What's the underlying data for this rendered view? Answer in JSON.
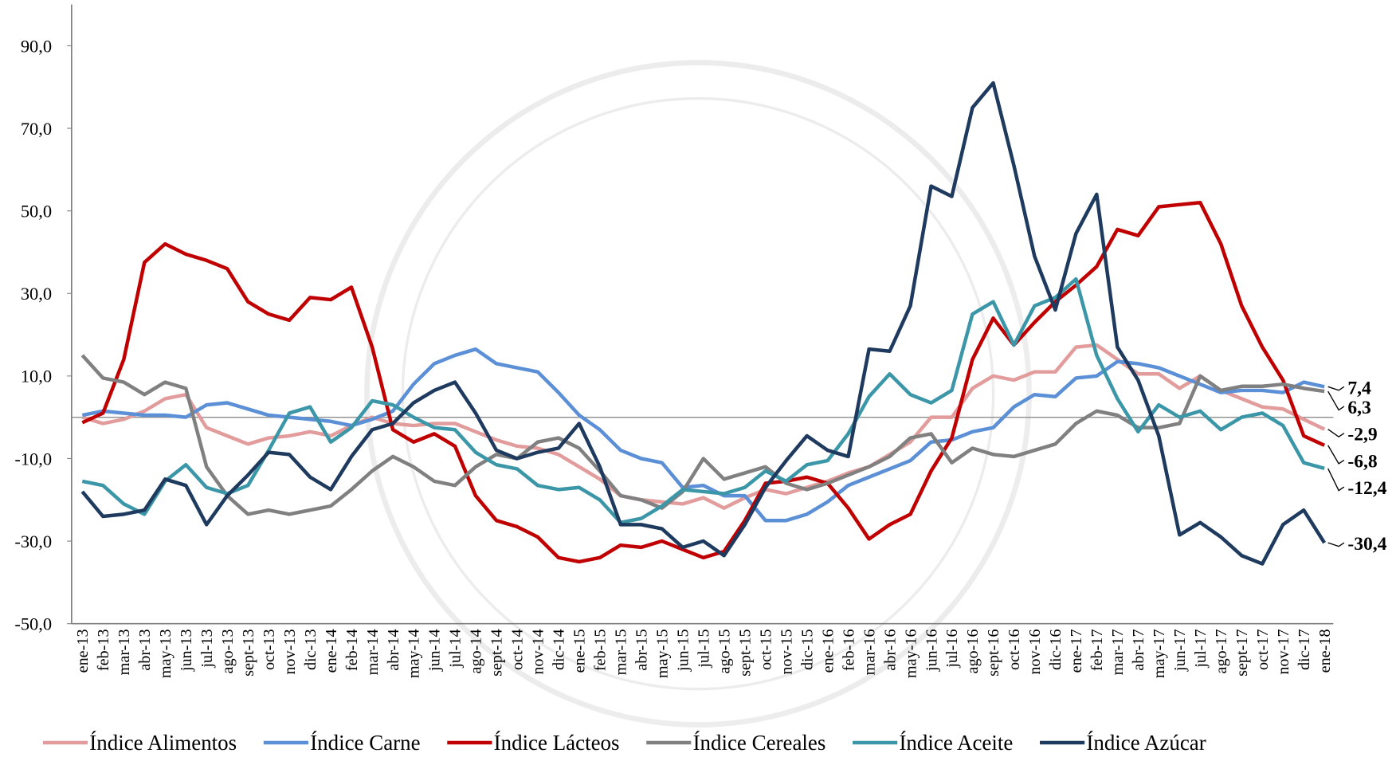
{
  "chart_data": {
    "type": "line",
    "categories": [
      "ene-13",
      "feb-13",
      "mar-13",
      "abr-13",
      "may-13",
      "jun-13",
      "jul-13",
      "ago-13",
      "sept-13",
      "oct-13",
      "nov-13",
      "dic-13",
      "ene-14",
      "feb-14",
      "mar-14",
      "abr-14",
      "may-14",
      "jun-14",
      "jul-14",
      "ago-14",
      "sept-14",
      "oct-14",
      "nov-14",
      "dic-14",
      "ene-15",
      "feb-15",
      "mar-15",
      "abr-15",
      "may-15",
      "jun-15",
      "jul-15",
      "ago-15",
      "sept-15",
      "oct-15",
      "nov-15",
      "dic-15",
      "ene-16",
      "feb-16",
      "mar-16",
      "abr-16",
      "may-16",
      "jun-16",
      "jul-16",
      "ago-16",
      "sept-16",
      "oct-16",
      "nov-16",
      "dic-16",
      "ene-17",
      "feb-17",
      "mar-17",
      "abr-17",
      "may-17",
      "jun-17",
      "jul-17",
      "ago-17",
      "sept-17",
      "oct-17",
      "nov-17",
      "dic-17",
      "ene-18"
    ],
    "ylim": [
      -50,
      100
    ],
    "yticks": [
      {
        "value": -50,
        "label": "-50,0"
      },
      {
        "value": -30,
        "label": "-30,0"
      },
      {
        "value": -10,
        "label": "-10,0"
      },
      {
        "value": 10,
        "label": "10,0"
      },
      {
        "value": 30,
        "label": "30,0"
      },
      {
        "value": 50,
        "label": "50,0"
      },
      {
        "value": 70,
        "label": "70,0"
      },
      {
        "value": 90,
        "label": "90,0"
      }
    ],
    "legend": "bottom",
    "series": [
      {
        "name": "Índice Alimentos",
        "color": "#e39c9c",
        "values": [
          0,
          -1.5,
          -0.5,
          1.5,
          4.5,
          5.5,
          -2.5,
          -4.5,
          -6.5,
          -5,
          -4.5,
          -3.5,
          -4.5,
          -2,
          0,
          -1.5,
          -2,
          -1.5,
          -1.5,
          -3.5,
          -5.5,
          -7,
          -7.5,
          -9,
          -12,
          -15,
          -19,
          -20,
          -20.5,
          -21,
          -19.5,
          -22,
          -19.5,
          -17.5,
          -18.5,
          -17,
          -15.5,
          -13.5,
          -12,
          -9,
          -6,
          0,
          0,
          7,
          10,
          9,
          11,
          11,
          17,
          17.5,
          14,
          10.5,
          10.5,
          7,
          10,
          6.5,
          4.5,
          2.5,
          2,
          -0.5,
          -2.9
        ],
        "value_labels": [
          null,
          null,
          null,
          null,
          null,
          null,
          null,
          null,
          null,
          null,
          null,
          null,
          null,
          null,
          null,
          null,
          null,
          null,
          null,
          null,
          null,
          null,
          null,
          null,
          null,
          null,
          null,
          null,
          null,
          null,
          null,
          null,
          null,
          null,
          null,
          null,
          null,
          null,
          null,
          null,
          null,
          null,
          null,
          null,
          null,
          null,
          null,
          null,
          null,
          null,
          null,
          null,
          null,
          null,
          null,
          null,
          null,
          null,
          null,
          null,
          "-2,9"
        ]
      },
      {
        "name": "Índice Carne",
        "color": "#5b8fd6",
        "values": [
          0.5,
          1.5,
          1,
          0.5,
          0.5,
          0,
          3,
          3.5,
          2,
          0.5,
          0,
          -0.5,
          -1,
          -2,
          -0.5,
          1.5,
          8,
          13,
          15,
          16.5,
          13,
          12,
          11,
          6,
          0.5,
          -3,
          -8,
          -10,
          -11,
          -17,
          -16.5,
          -19,
          -19,
          -25,
          -25,
          -23.5,
          -20.5,
          -16.5,
          -14.5,
          -12.5,
          -10.5,
          -6,
          -5.5,
          -3.5,
          -2.5,
          2.5,
          5.5,
          5,
          9.5,
          10,
          13.5,
          13,
          12,
          10,
          8,
          6,
          6.5,
          6.5,
          6,
          8.5,
          7.4
        ],
        "value_labels": [
          null,
          null,
          null,
          null,
          null,
          null,
          null,
          null,
          null,
          null,
          null,
          null,
          null,
          null,
          null,
          null,
          null,
          null,
          null,
          null,
          null,
          null,
          null,
          null,
          null,
          null,
          null,
          null,
          null,
          null,
          null,
          null,
          null,
          null,
          null,
          null,
          null,
          null,
          null,
          null,
          null,
          null,
          null,
          null,
          null,
          null,
          null,
          null,
          null,
          null,
          null,
          null,
          null,
          null,
          null,
          null,
          null,
          null,
          null,
          null,
          "7,4"
        ]
      },
      {
        "name": "Índice Lácteos",
        "color": "#c00000",
        "values": [
          -1.3,
          1,
          14,
          37.5,
          42,
          39.5,
          38,
          36,
          28,
          25,
          23.5,
          29,
          28.5,
          31.5,
          17,
          -3,
          -6,
          -4,
          -7,
          -19,
          -25,
          -26.5,
          -29,
          -34,
          -35,
          -34,
          -31,
          -31.5,
          -30,
          -32,
          -34,
          -32.5,
          -25,
          -16,
          -15.5,
          -14.5,
          -16,
          -22,
          -29.5,
          -26,
          -23.5,
          -13,
          -5,
          14,
          24,
          17.5,
          23,
          28,
          32,
          36.5,
          45.5,
          44,
          51,
          51.5,
          52,
          42,
          27,
          17,
          9,
          -4.5,
          -6.8
        ],
        "value_labels": [
          null,
          null,
          null,
          null,
          null,
          null,
          null,
          null,
          null,
          null,
          null,
          null,
          null,
          null,
          null,
          null,
          null,
          null,
          null,
          null,
          null,
          null,
          null,
          null,
          null,
          null,
          null,
          null,
          null,
          null,
          null,
          null,
          null,
          null,
          null,
          null,
          null,
          null,
          null,
          null,
          null,
          null,
          null,
          null,
          null,
          null,
          null,
          null,
          null,
          null,
          null,
          null,
          null,
          null,
          null,
          null,
          null,
          null,
          null,
          null,
          "-6,8"
        ]
      },
      {
        "name": "Índice Cereales",
        "color": "#808080",
        "values": [
          15,
          9.5,
          8.5,
          5.5,
          8.5,
          7,
          -12,
          -19,
          -23.5,
          -22.5,
          -23.5,
          -22.5,
          -21.5,
          -17.5,
          -13,
          -9.5,
          -12,
          -15.5,
          -16.5,
          -12,
          -9,
          -10,
          -6,
          -5,
          -7.5,
          -13,
          -19,
          -20,
          -22,
          -18,
          -10,
          -15,
          -13.5,
          -12,
          -16,
          -17.5,
          -16,
          -14,
          -12,
          -9.5,
          -5,
          -4,
          -11,
          -7.5,
          -9,
          -9.5,
          -8,
          -6.5,
          -1.5,
          1.5,
          0.5,
          -2.5,
          -2.5,
          -1.5,
          10,
          6.5,
          7.5,
          7.5,
          8,
          7,
          6.3
        ],
        "value_labels": [
          null,
          null,
          null,
          null,
          null,
          null,
          null,
          null,
          null,
          null,
          null,
          null,
          null,
          null,
          null,
          null,
          null,
          null,
          null,
          null,
          null,
          null,
          null,
          null,
          null,
          null,
          null,
          null,
          null,
          null,
          null,
          null,
          null,
          null,
          null,
          null,
          null,
          null,
          null,
          null,
          null,
          null,
          null,
          null,
          null,
          null,
          null,
          null,
          null,
          null,
          null,
          null,
          null,
          null,
          null,
          null,
          null,
          null,
          null,
          null,
          "6,3"
        ]
      },
      {
        "name": "Índice Aceite",
        "color": "#3b97a8",
        "values": [
          -15.5,
          -16.5,
          -21,
          -23.5,
          -15.5,
          -11.5,
          -17,
          -18.5,
          -16.5,
          -8,
          1,
          2.5,
          -6,
          -2.5,
          4,
          3,
          0,
          -2.5,
          -3,
          -8.5,
          -11.5,
          -12.5,
          -16.5,
          -17.5,
          -17,
          -20,
          -25.5,
          -24.5,
          -21.5,
          -17.5,
          -18,
          -18.5,
          -17,
          -13,
          -15.5,
          -11.5,
          -10.5,
          -4,
          5,
          10.5,
          5.5,
          3.5,
          6.5,
          25,
          28,
          17.5,
          27,
          29,
          33.5,
          15,
          4.5,
          -3.5,
          3,
          0,
          1.5,
          -3,
          0,
          1,
          -2,
          -11,
          -12.4
        ],
        "value_labels": [
          null,
          null,
          null,
          null,
          null,
          null,
          null,
          null,
          null,
          null,
          null,
          null,
          null,
          null,
          null,
          null,
          null,
          null,
          null,
          null,
          null,
          null,
          null,
          null,
          null,
          null,
          null,
          null,
          null,
          null,
          null,
          null,
          null,
          null,
          null,
          null,
          null,
          null,
          null,
          null,
          null,
          null,
          null,
          null,
          null,
          null,
          null,
          null,
          null,
          null,
          null,
          null,
          null,
          null,
          null,
          null,
          null,
          null,
          null,
          null,
          "-12,4"
        ]
      },
      {
        "name": "Índice Azúcar",
        "color": "#1f3a5f",
        "values": [
          -18,
          -24,
          -23.5,
          -22.5,
          -15,
          -16.5,
          -26,
          -19,
          -14,
          -8.5,
          -9,
          -14.5,
          -17.5,
          -9.5,
          -3,
          -1.5,
          3.5,
          6.5,
          8.5,
          1,
          -8,
          -10,
          -8.5,
          -7.5,
          -1.5,
          -12,
          -26,
          -26,
          -27,
          -31.5,
          -30,
          -33.5,
          -26,
          -17,
          -10.5,
          -4.5,
          -8,
          -9.5,
          16.5,
          16,
          27,
          56,
          53.5,
          75,
          81,
          61,
          39,
          26,
          44.5,
          54,
          17,
          9,
          -4.5,
          -28.5,
          -25.5,
          -29,
          -33.5,
          -35.5,
          -26,
          -22.5,
          -30.4
        ],
        "value_labels": [
          null,
          null,
          null,
          null,
          null,
          null,
          null,
          null,
          null,
          null,
          null,
          null,
          null,
          null,
          null,
          null,
          null,
          null,
          null,
          null,
          null,
          null,
          null,
          null,
          null,
          null,
          null,
          null,
          null,
          null,
          null,
          null,
          null,
          null,
          null,
          null,
          null,
          null,
          null,
          null,
          null,
          null,
          null,
          null,
          null,
          null,
          null,
          null,
          null,
          null,
          null,
          null,
          null,
          null,
          null,
          null,
          null,
          null,
          null,
          null,
          "-30,4"
        ]
      }
    ]
  }
}
